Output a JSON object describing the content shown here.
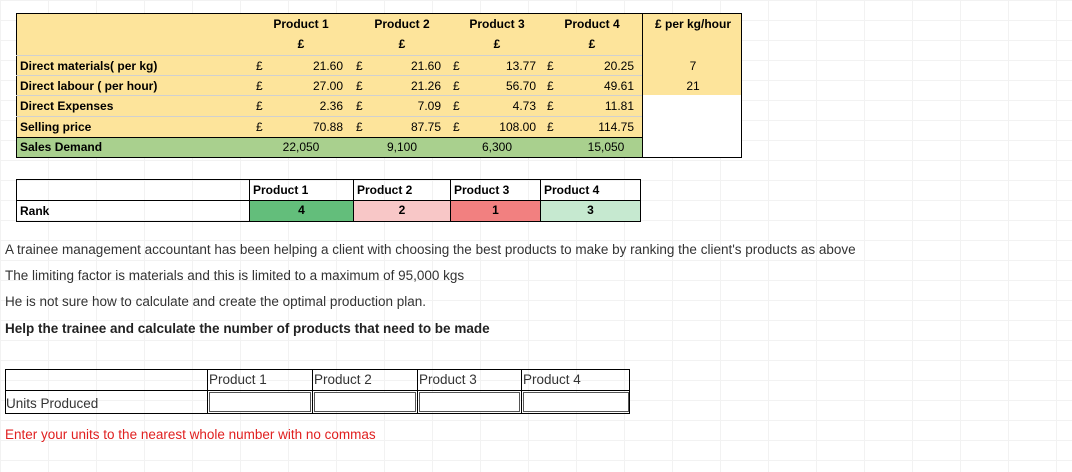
{
  "colors": {
    "yellow": "#fde49b",
    "green_row": "#a9d08e",
    "rank_green": "#63be7b",
    "rank_pink": "#f8c7c7",
    "rank_red": "#f28080",
    "rank_light_green": "#c6e9d0",
    "instruction_red": "#e02020"
  },
  "cost_table": {
    "headers": [
      "Product 1",
      "Product 2",
      "Product 3",
      "Product 4"
    ],
    "currency_row": [
      "£",
      "£",
      "£",
      "£"
    ],
    "extra_header": "£ per kg/hour",
    "rows": [
      {
        "label": "Direct materials( per kg)",
        "values": [
          "21.60",
          "21.60",
          "13.77",
          "20.25"
        ],
        "extra": "7"
      },
      {
        "label": "Direct labour ( per hour)",
        "values": [
          "27.00",
          "21.26",
          "56.70",
          "49.61"
        ],
        "extra": "21"
      },
      {
        "label": "Direct Expenses",
        "values": [
          "2.36",
          "7.09",
          "4.73",
          "11.81"
        ],
        "extra": ""
      },
      {
        "label": "Selling price",
        "values": [
          "70.88",
          "87.75",
          "108.00",
          "114.75"
        ],
        "extra": ""
      }
    ],
    "pound_sign": "£",
    "sales_demand": {
      "label": "Sales Demand",
      "values": [
        "22,050",
        "9,100",
        "6,300",
        "15,050"
      ]
    }
  },
  "rank_table": {
    "headers": [
      "Product 1",
      "Product 2",
      "Product 3",
      "Product 4"
    ],
    "label": "Rank",
    "values": [
      "4",
      "2",
      "1",
      "3"
    ]
  },
  "instructions": {
    "line1": "A trainee management accountant has been helping a client with choosing the best products to make by ranking the client's products as above",
    "line2": "The limiting factor is materials and this is limited to a maximum of 95,000 kgs",
    "line3": "He is not sure how to calculate and create the optimal production plan.",
    "line4": "Help the trainee and calculate the number of products that need to be made"
  },
  "answer_table": {
    "headers": [
      "Product 1",
      "Product 2",
      "Product 3",
      "Product 4"
    ],
    "row_label": "Units Produced",
    "inputs": [
      "",
      "",
      "",
      ""
    ],
    "note": "Enter your units to the nearest whole number with no commas"
  }
}
